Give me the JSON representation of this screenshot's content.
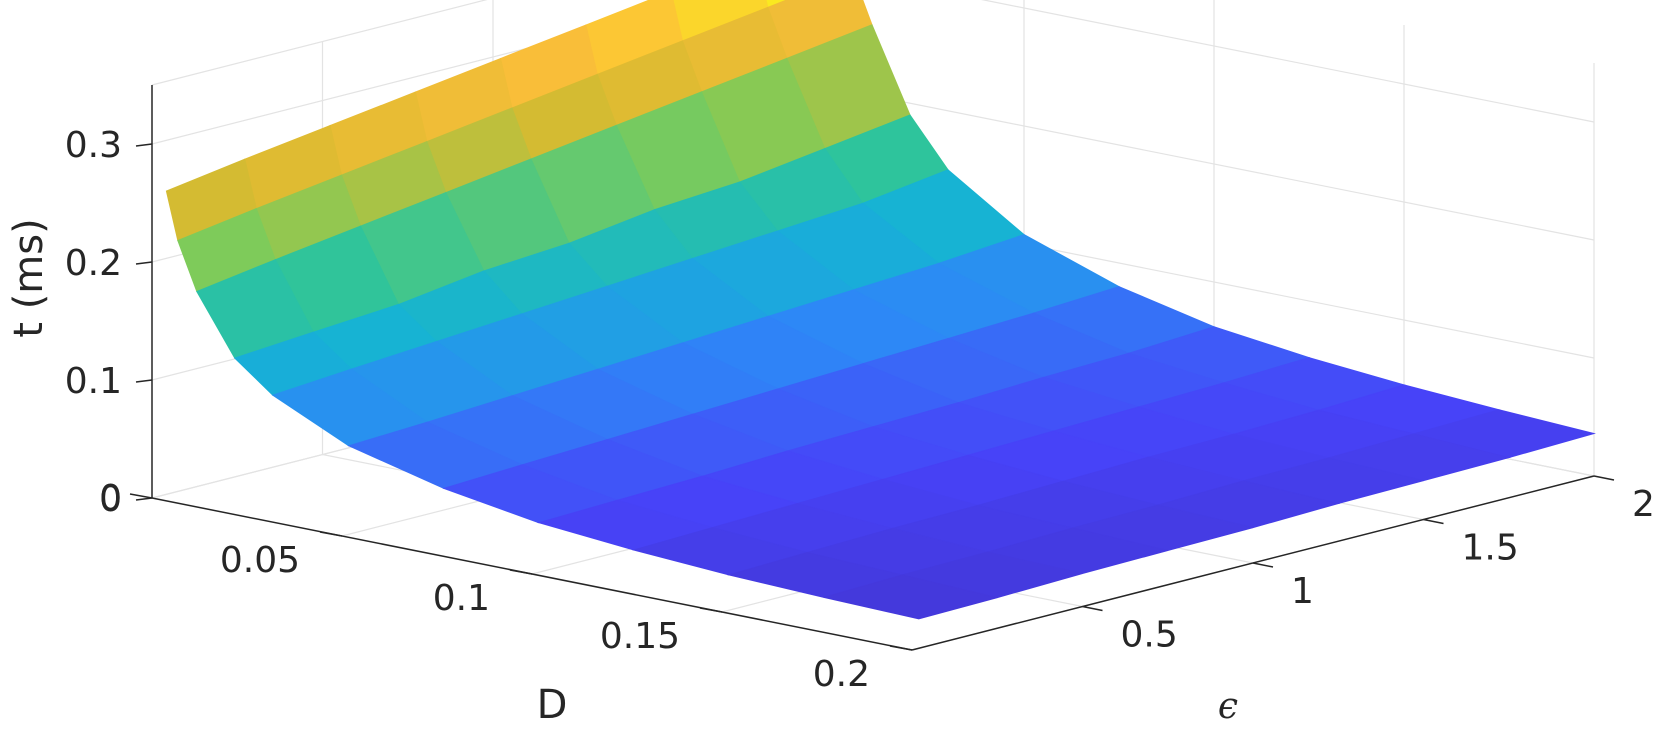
{
  "chart_data": {
    "type": "surface",
    "x": {
      "name": "D",
      "label": "D",
      "range": [
        0,
        0.2
      ],
      "ticks": [
        0,
        0.05,
        0.1,
        0.15,
        0.2
      ],
      "tick_labels": [
        "0",
        "0.05",
        "0.1",
        "0.15",
        "0.2"
      ]
    },
    "y": {
      "name": "epsilon",
      "label": "ϵ",
      "range": [
        0,
        2
      ],
      "ticks": [
        0.5,
        1,
        1.5,
        2
      ],
      "tick_labels": [
        "0.5",
        "1",
        "1.5",
        "2"
      ]
    },
    "z": {
      "name": "t",
      "label": "t (ms)",
      "range": [
        0,
        0.35
      ],
      "ticks": [
        0,
        0.1,
        0.2,
        0.3
      ],
      "tick_labels": [
        "0",
        "0.1",
        "0.2",
        "0.3"
      ]
    },
    "grid": true,
    "colormap": "parula",
    "colormap_stops": [
      "#3e26a8",
      "#4743f8",
      "#2e87f7",
      "#16b2d5",
      "#2ec49c",
      "#80cb58",
      "#d9ba30",
      "#fcbe3a",
      "#f9fb15"
    ],
    "d_values": [
      0.002,
      0.005,
      0.01,
      0.02,
      0.03,
      0.05,
      0.075,
      0.1,
      0.125,
      0.15,
      0.175,
      0.2
    ],
    "eps_values": [
      0.02,
      0.25,
      0.5,
      0.75,
      1,
      1.25,
      1.5,
      1.75,
      2
    ],
    "t_values": [
      [
        0.26,
        0.27,
        0.28,
        0.29,
        0.3,
        0.31,
        0.32,
        0.33,
        0.35
      ],
      [
        0.22,
        0.23,
        0.24,
        0.25,
        0.26,
        0.27,
        0.28,
        0.29,
        0.3
      ],
      [
        0.18,
        0.19,
        0.2,
        0.21,
        0.22,
        0.23,
        0.24,
        0.25,
        0.26
      ],
      [
        0.13,
        0.135,
        0.14,
        0.15,
        0.155,
        0.165,
        0.17,
        0.18,
        0.19
      ],
      [
        0.105,
        0.11,
        0.115,
        0.12,
        0.125,
        0.13,
        0.135,
        0.14,
        0.15
      ],
      [
        0.075,
        0.078,
        0.082,
        0.086,
        0.09,
        0.094,
        0.098,
        0.102,
        0.108
      ],
      [
        0.055,
        0.058,
        0.061,
        0.064,
        0.067,
        0.07,
        0.073,
        0.076,
        0.08
      ],
      [
        0.042,
        0.044,
        0.046,
        0.049,
        0.051,
        0.053,
        0.056,
        0.058,
        0.062
      ],
      [
        0.035,
        0.037,
        0.039,
        0.041,
        0.043,
        0.045,
        0.047,
        0.049,
        0.052
      ],
      [
        0.03,
        0.032,
        0.034,
        0.035,
        0.037,
        0.039,
        0.04,
        0.042,
        0.045
      ],
      [
        0.027,
        0.029,
        0.03,
        0.032,
        0.033,
        0.035,
        0.036,
        0.038,
        0.04
      ],
      [
        0.025,
        0.026,
        0.028,
        0.029,
        0.03,
        0.032,
        0.033,
        0.034,
        0.036
      ]
    ]
  }
}
